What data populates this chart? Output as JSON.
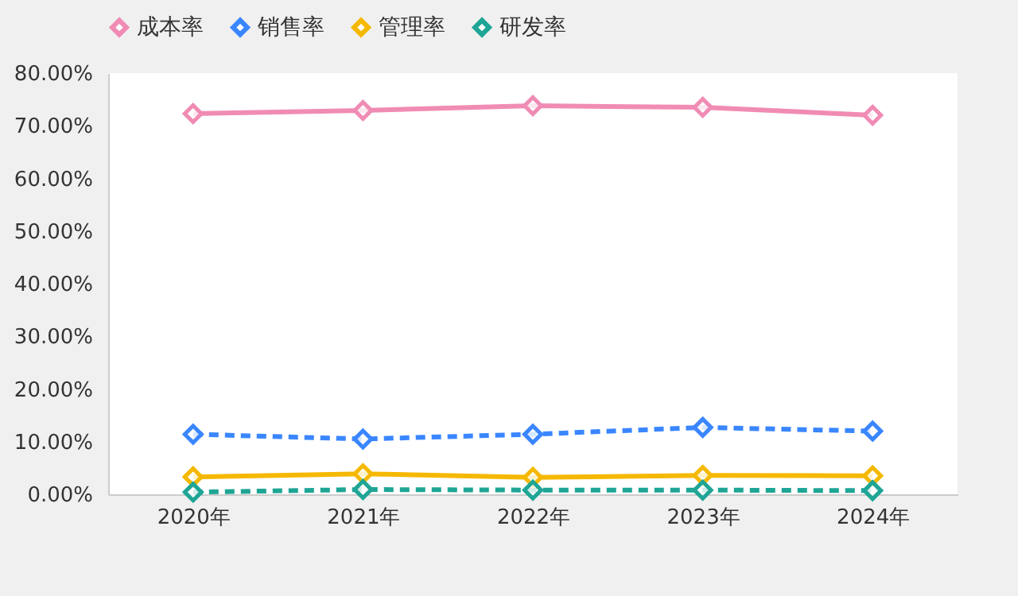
{
  "chart_data": {
    "type": "line",
    "categories": [
      "2020年",
      "2021年",
      "2022年",
      "2023年",
      "2024年"
    ],
    "series": [
      {
        "name": "成本率",
        "color": "#f08cb4",
        "line_style": "solid",
        "values": [
          72.3,
          72.9,
          73.8,
          73.5,
          72.0
        ]
      },
      {
        "name": "销售率",
        "color": "#3a86ff",
        "line_style": "dashed",
        "values": [
          11.4,
          10.5,
          11.4,
          12.7,
          12.0
        ]
      },
      {
        "name": "管理率",
        "color": "#f5b800",
        "line_style": "solid",
        "values": [
          3.3,
          3.9,
          3.2,
          3.6,
          3.5
        ]
      },
      {
        "name": "研发率",
        "color": "#1fa595",
        "line_style": "dashed",
        "values": [
          0.4,
          0.9,
          0.8,
          0.8,
          0.7
        ]
      }
    ],
    "ylim": [
      0,
      80
    ],
    "yticks": [
      {
        "value": 0,
        "label": "0.00%"
      },
      {
        "value": 10,
        "label": "10.00%"
      },
      {
        "value": 20,
        "label": "20.00%"
      },
      {
        "value": 30,
        "label": "30.00%"
      },
      {
        "value": 40,
        "label": "40.00%"
      },
      {
        "value": 50,
        "label": "50.00%"
      },
      {
        "value": 60,
        "label": "60.00%"
      },
      {
        "value": 70,
        "label": "70.00%"
      },
      {
        "value": 80,
        "label": "80.00%"
      }
    ],
    "marker": "diamond",
    "grid": false,
    "legend": "top"
  }
}
